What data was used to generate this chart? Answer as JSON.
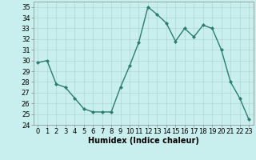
{
  "x": [
    0,
    1,
    2,
    3,
    4,
    5,
    6,
    7,
    8,
    9,
    10,
    11,
    12,
    13,
    14,
    15,
    16,
    17,
    18,
    19,
    20,
    21,
    22,
    23
  ],
  "y": [
    29.8,
    30.0,
    27.8,
    27.5,
    26.5,
    25.5,
    25.2,
    25.2,
    25.2,
    27.5,
    29.5,
    31.7,
    35.0,
    34.3,
    33.5,
    31.8,
    33.0,
    32.2,
    33.3,
    33.0,
    31.0,
    28.0,
    26.5,
    24.5
  ],
  "line_color": "#2d7d6e",
  "marker": "D",
  "marker_size": 2.0,
  "line_width": 1.0,
  "bg_color": "#c8eeee",
  "grid_color": "#b0d8d8",
  "xlabel": "Humidex (Indice chaleur)",
  "ylim": [
    24,
    35.5
  ],
  "xlim": [
    -0.5,
    23.5
  ],
  "yticks": [
    24,
    25,
    26,
    27,
    28,
    29,
    30,
    31,
    32,
    33,
    34,
    35
  ],
  "xticks": [
    0,
    1,
    2,
    3,
    4,
    5,
    6,
    7,
    8,
    9,
    10,
    11,
    12,
    13,
    14,
    15,
    16,
    17,
    18,
    19,
    20,
    21,
    22,
    23
  ],
  "tick_fontsize": 6,
  "xlabel_fontsize": 7
}
